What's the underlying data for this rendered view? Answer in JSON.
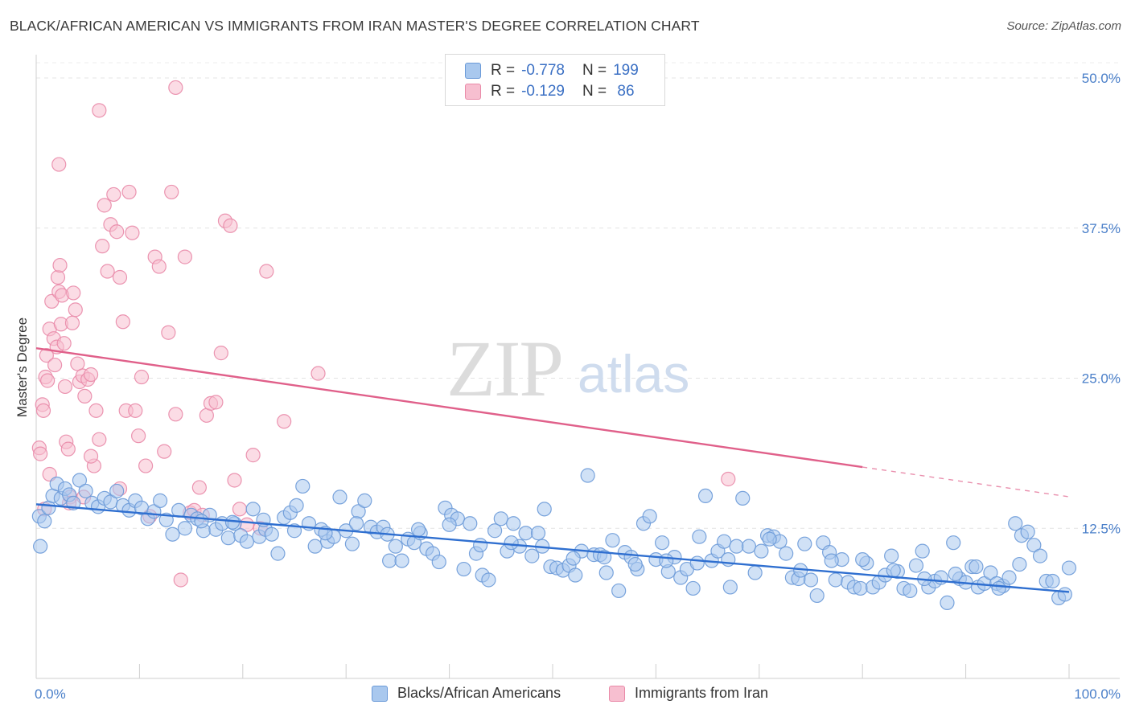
{
  "title": "BLACK/AFRICAN AMERICAN VS IMMIGRANTS FROM IRAN MASTER'S DEGREE CORRELATION CHART",
  "source": "Source: ZipAtlas.com",
  "watermark": {
    "zip": "ZIP",
    "atlas": "atlas"
  },
  "legend_stats": [
    {
      "r_label": "R =",
      "r_value": "-0.778",
      "n_label": "N =",
      "n_value": "199",
      "color": "#a9c8ee",
      "border": "#6b9ad8"
    },
    {
      "r_label": "R =",
      "r_value": "-0.129",
      "n_label": "N =",
      "n_value": " 86",
      "color": "#f7bfd0",
      "border": "#e98aa8"
    }
  ],
  "bottom_legend": [
    {
      "label": "Blacks/African Americans",
      "color": "#a9c8ee",
      "border": "#6b9ad8"
    },
    {
      "label": "Immigrants from Iran",
      "color": "#f7bfd0",
      "border": "#e98aa8"
    }
  ],
  "colors": {
    "blue_point": "#a9c8ee",
    "blue_stroke": "#6b9ad8",
    "blue_line": "#2f6fd0",
    "pink_point": "#f7bfd0",
    "pink_stroke": "#e98aa8",
    "pink_line": "#e0608a"
  },
  "chart_data": {
    "type": "scatter",
    "title": "BLACK/AFRICAN AMERICAN VS IMMIGRANTS FROM IRAN MASTER'S DEGREE CORRELATION CHART",
    "xlabel": "",
    "ylabel": "Master's Degree",
    "xlim": [
      0,
      100
    ],
    "ylim": [
      0,
      52
    ],
    "x_tick_labels": [
      "0.0%",
      "100.0%"
    ],
    "y_ticks": [
      12.5,
      25.0,
      37.5,
      50.0
    ],
    "y_tick_labels": [
      "12.5%",
      "25.0%",
      "37.5%",
      "50.0%"
    ],
    "grid": true,
    "legend_position": "top-center",
    "series": [
      {
        "name": "Blacks/African Americans",
        "r": -0.778,
        "n": 199,
        "trend": {
          "x": [
            0,
            100
          ],
          "y": [
            14.5,
            7.2
          ]
        },
        "points": [
          [
            0.3,
            13.5
          ],
          [
            0.4,
            11.0
          ],
          [
            0.8,
            13.1
          ],
          [
            1.2,
            14.2
          ],
          [
            1.6,
            15.2
          ],
          [
            2.0,
            16.2
          ],
          [
            2.4,
            15.0
          ],
          [
            2.8,
            15.8
          ],
          [
            3.2,
            15.3
          ],
          [
            3.6,
            14.6
          ],
          [
            4.2,
            16.5
          ],
          [
            4.8,
            15.6
          ],
          [
            5.4,
            14.6
          ],
          [
            6.0,
            14.3
          ],
          [
            6.6,
            15.0
          ],
          [
            7.2,
            14.7
          ],
          [
            7.8,
            15.6
          ],
          [
            8.4,
            14.4
          ],
          [
            9.0,
            14.0
          ],
          [
            9.6,
            14.8
          ],
          [
            10.2,
            14.2
          ],
          [
            10.8,
            13.3
          ],
          [
            11.4,
            13.9
          ],
          [
            12.0,
            14.8
          ],
          [
            12.6,
            13.2
          ],
          [
            13.2,
            12.0
          ],
          [
            13.8,
            14.0
          ],
          [
            14.4,
            12.5
          ],
          [
            15.0,
            13.6
          ],
          [
            15.6,
            13.3
          ],
          [
            16.2,
            12.3
          ],
          [
            16.8,
            13.6
          ],
          [
            17.4,
            12.4
          ],
          [
            18.0,
            12.9
          ],
          [
            18.6,
            11.7
          ],
          [
            19.2,
            12.9
          ],
          [
            19.8,
            11.9
          ],
          [
            20.4,
            11.4
          ],
          [
            21.0,
            14.1
          ],
          [
            21.6,
            11.8
          ],
          [
            22.2,
            12.4
          ],
          [
            22.8,
            12.0
          ],
          [
            23.4,
            10.4
          ],
          [
            24.0,
            13.4
          ],
          [
            24.6,
            13.8
          ],
          [
            25.2,
            14.4
          ],
          [
            25.8,
            16.0
          ],
          [
            26.4,
            12.9
          ],
          [
            27.0,
            11.0
          ],
          [
            27.6,
            12.4
          ],
          [
            28.2,
            11.4
          ],
          [
            28.8,
            11.8
          ],
          [
            29.4,
            15.1
          ],
          [
            30.0,
            12.3
          ],
          [
            30.6,
            11.2
          ],
          [
            31.2,
            13.9
          ],
          [
            31.8,
            14.8
          ],
          [
            32.4,
            12.6
          ],
          [
            33.0,
            12.2
          ],
          [
            33.6,
            12.6
          ],
          [
            34.2,
            9.8
          ],
          [
            34.8,
            11.0
          ],
          [
            35.4,
            9.8
          ],
          [
            36.0,
            11.6
          ],
          [
            36.6,
            11.3
          ],
          [
            37.2,
            12.1
          ],
          [
            37.8,
            10.8
          ],
          [
            38.4,
            10.4
          ],
          [
            39.0,
            9.7
          ],
          [
            39.6,
            14.2
          ],
          [
            40.2,
            13.6
          ],
          [
            40.8,
            13.3
          ],
          [
            41.4,
            9.1
          ],
          [
            42.0,
            12.9
          ],
          [
            42.6,
            10.4
          ],
          [
            43.2,
            8.6
          ],
          [
            43.8,
            8.2
          ],
          [
            44.4,
            12.3
          ],
          [
            45.0,
            13.3
          ],
          [
            45.6,
            10.6
          ],
          [
            46.2,
            12.9
          ],
          [
            46.8,
            11.0
          ],
          [
            47.4,
            12.1
          ],
          [
            48.0,
            10.2
          ],
          [
            48.6,
            12.1
          ],
          [
            49.2,
            14.1
          ],
          [
            49.8,
            9.3
          ],
          [
            50.4,
            9.2
          ],
          [
            51.0,
            9.0
          ],
          [
            51.6,
            9.4
          ],
          [
            52.2,
            8.6
          ],
          [
            52.8,
            10.6
          ],
          [
            53.4,
            16.9
          ],
          [
            54.0,
            10.3
          ],
          [
            54.6,
            10.3
          ],
          [
            55.2,
            8.8
          ],
          [
            55.8,
            11.5
          ],
          [
            56.4,
            7.3
          ],
          [
            57.0,
            10.5
          ],
          [
            57.6,
            10.1
          ],
          [
            58.2,
            9.1
          ],
          [
            58.8,
            12.9
          ],
          [
            59.4,
            13.5
          ],
          [
            60.0,
            9.9
          ],
          [
            60.6,
            11.3
          ],
          [
            61.2,
            8.9
          ],
          [
            61.8,
            10.1
          ],
          [
            62.4,
            8.4
          ],
          [
            63.0,
            9.1
          ],
          [
            63.6,
            7.5
          ],
          [
            64.2,
            11.8
          ],
          [
            64.8,
            15.2
          ],
          [
            65.4,
            9.8
          ],
          [
            66.0,
            10.6
          ],
          [
            66.6,
            11.4
          ],
          [
            67.2,
            7.6
          ],
          [
            67.8,
            11.0
          ],
          [
            68.4,
            15.0
          ],
          [
            69.0,
            11.0
          ],
          [
            69.6,
            8.8
          ],
          [
            70.2,
            10.6
          ],
          [
            70.8,
            11.9
          ],
          [
            71.4,
            11.8
          ],
          [
            72.0,
            11.4
          ],
          [
            72.6,
            10.4
          ],
          [
            73.2,
            8.4
          ],
          [
            73.8,
            8.3
          ],
          [
            74.4,
            11.2
          ],
          [
            75.0,
            8.2
          ],
          [
            75.6,
            6.9
          ],
          [
            76.2,
            11.3
          ],
          [
            76.8,
            10.5
          ],
          [
            77.4,
            8.2
          ],
          [
            78.0,
            9.9
          ],
          [
            78.6,
            8.0
          ],
          [
            79.2,
            7.6
          ],
          [
            79.8,
            7.5
          ],
          [
            80.4,
            9.6
          ],
          [
            81.0,
            7.6
          ],
          [
            81.6,
            8.0
          ],
          [
            82.2,
            8.6
          ],
          [
            82.8,
            10.2
          ],
          [
            83.4,
            8.9
          ],
          [
            84.0,
            7.5
          ],
          [
            84.6,
            7.3
          ],
          [
            85.2,
            9.4
          ],
          [
            85.8,
            10.6
          ],
          [
            86.4,
            7.6
          ],
          [
            87.0,
            8.1
          ],
          [
            87.6,
            8.4
          ],
          [
            88.2,
            6.3
          ],
          [
            88.8,
            11.3
          ],
          [
            89.4,
            8.3
          ],
          [
            90.0,
            8.0
          ],
          [
            90.6,
            9.3
          ],
          [
            91.2,
            7.6
          ],
          [
            91.8,
            7.9
          ],
          [
            92.4,
            8.8
          ],
          [
            93.0,
            7.9
          ],
          [
            93.6,
            7.7
          ],
          [
            94.2,
            8.4
          ],
          [
            94.8,
            12.9
          ],
          [
            95.4,
            11.9
          ],
          [
            96.0,
            12.2
          ],
          [
            96.6,
            11.1
          ],
          [
            97.2,
            10.2
          ],
          [
            97.8,
            8.1
          ],
          [
            98.4,
            8.1
          ],
          [
            99.0,
            6.7
          ],
          [
            99.6,
            7.0
          ],
          [
            100.0,
            9.2
          ],
          [
            95.2,
            9.5
          ],
          [
            93.2,
            7.5
          ],
          [
            91.0,
            9.3
          ],
          [
            89.0,
            8.7
          ],
          [
            86.0,
            8.3
          ],
          [
            83.0,
            9.0
          ],
          [
            80.0,
            9.9
          ],
          [
            77.0,
            9.8
          ],
          [
            74.0,
            9.0
          ],
          [
            71.0,
            11.6
          ],
          [
            67.0,
            9.9
          ],
          [
            64.0,
            9.6
          ],
          [
            61.0,
            9.8
          ],
          [
            58.0,
            9.5
          ],
          [
            55.0,
            10.1
          ],
          [
            52.0,
            10.0
          ],
          [
            49.0,
            11.0
          ],
          [
            46.0,
            11.3
          ],
          [
            43.0,
            11.1
          ],
          [
            40.0,
            12.8
          ],
          [
            37.0,
            12.4
          ],
          [
            34.0,
            12.0
          ],
          [
            31.0,
            12.9
          ],
          [
            28.0,
            12.1
          ],
          [
            25.0,
            12.3
          ],
          [
            22.0,
            13.2
          ],
          [
            19.0,
            13.0
          ],
          [
            16.0,
            13.1
          ]
        ]
      },
      {
        "name": "Immigrants from Iran",
        "r": -0.129,
        "n": 86,
        "trend": {
          "x": [
            0,
            80
          ],
          "y": [
            27.5,
            17.6
          ]
        },
        "points": [
          [
            0.3,
            19.2
          ],
          [
            0.4,
            18.7
          ],
          [
            0.6,
            22.8
          ],
          [
            0.7,
            22.3
          ],
          [
            0.9,
            25.1
          ],
          [
            1.0,
            26.9
          ],
          [
            1.1,
            24.8
          ],
          [
            1.3,
            29.1
          ],
          [
            1.5,
            31.4
          ],
          [
            1.7,
            28.3
          ],
          [
            1.8,
            26.1
          ],
          [
            2.0,
            27.6
          ],
          [
            2.1,
            33.4
          ],
          [
            2.2,
            32.2
          ],
          [
            2.3,
            34.4
          ],
          [
            2.4,
            29.5
          ],
          [
            2.5,
            31.9
          ],
          [
            2.7,
            27.9
          ],
          [
            2.8,
            24.3
          ],
          [
            2.9,
            19.7
          ],
          [
            3.1,
            19.1
          ],
          [
            3.3,
            15.1
          ],
          [
            3.5,
            29.6
          ],
          [
            3.6,
            32.1
          ],
          [
            3.8,
            30.7
          ],
          [
            4.0,
            26.2
          ],
          [
            4.2,
            24.7
          ],
          [
            4.5,
            25.2
          ],
          [
            4.7,
            23.5
          ],
          [
            5.0,
            24.9
          ],
          [
            5.3,
            25.3
          ],
          [
            5.6,
            17.7
          ],
          [
            5.8,
            22.3
          ],
          [
            6.1,
            19.9
          ],
          [
            6.4,
            36.0
          ],
          [
            6.6,
            39.4
          ],
          [
            6.9,
            33.9
          ],
          [
            7.2,
            37.8
          ],
          [
            7.5,
            40.3
          ],
          [
            7.8,
            37.2
          ],
          [
            8.1,
            33.4
          ],
          [
            8.4,
            29.7
          ],
          [
            8.7,
            22.3
          ],
          [
            9.0,
            40.5
          ],
          [
            9.3,
            37.1
          ],
          [
            9.6,
            22.3
          ],
          [
            9.9,
            20.2
          ],
          [
            10.2,
            25.1
          ],
          [
            10.6,
            17.7
          ],
          [
            11.0,
            13.5
          ],
          [
            11.5,
            35.1
          ],
          [
            11.9,
            34.3
          ],
          [
            12.4,
            18.9
          ],
          [
            12.8,
            28.8
          ],
          [
            13.1,
            40.5
          ],
          [
            13.5,
            22.0
          ],
          [
            14.0,
            8.2
          ],
          [
            14.4,
            35.1
          ],
          [
            14.9,
            13.8
          ],
          [
            15.3,
            14.0
          ],
          [
            15.8,
            15.9
          ],
          [
            16.1,
            13.6
          ],
          [
            16.5,
            21.9
          ],
          [
            16.9,
            22.9
          ],
          [
            17.4,
            23.0
          ],
          [
            17.9,
            27.1
          ],
          [
            18.3,
            38.1
          ],
          [
            18.8,
            37.7
          ],
          [
            19.2,
            16.5
          ],
          [
            19.7,
            14.1
          ],
          [
            20.4,
            12.8
          ],
          [
            21.0,
            18.6
          ],
          [
            21.7,
            12.5
          ],
          [
            22.3,
            33.9
          ],
          [
            24.0,
            21.4
          ],
          [
            27.3,
            25.4
          ],
          [
            2.2,
            42.8
          ],
          [
            6.1,
            47.3
          ],
          [
            13.5,
            49.2
          ],
          [
            3.2,
            14.6
          ],
          [
            4.6,
            15.1
          ],
          [
            5.3,
            18.5
          ],
          [
            8.1,
            15.8
          ],
          [
            0.8,
            14.1
          ],
          [
            67.0,
            16.6
          ],
          [
            1.3,
            17.0
          ]
        ]
      }
    ]
  }
}
